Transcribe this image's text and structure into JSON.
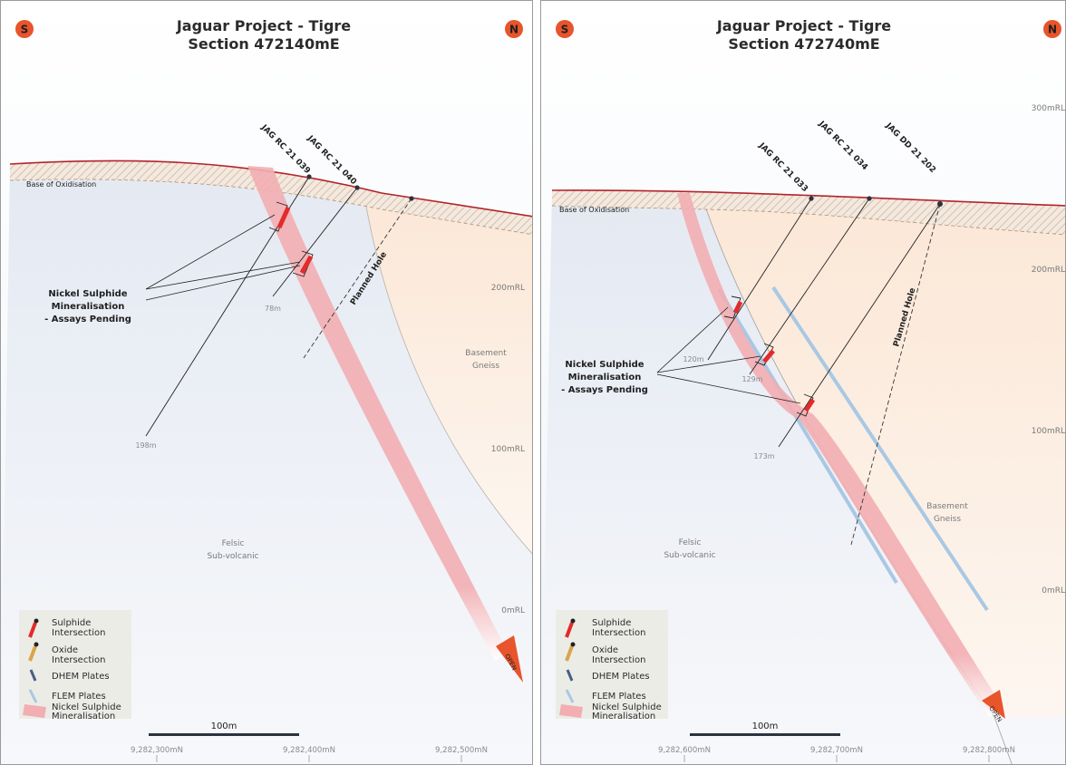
{
  "left": {
    "title": "Jaguar Project - Tigre",
    "subtitle": "Section 472140mE",
    "south": "S",
    "north": "N",
    "base_oxidisation": "Base of Oxidisation",
    "holes": [
      "JAG RC 21 039",
      "JAG RC 21 040"
    ],
    "planned_hole": "Planned Hole",
    "depths": [
      "198m",
      "78m"
    ],
    "mineralisation_label": [
      "Nickel Sulphide",
      "Mineralisation",
      "- Assays Pending"
    ],
    "basement": [
      "Basement",
      "Gneiss"
    ],
    "felsic": [
      "Felsic",
      "Sub-volcanic"
    ],
    "rl": [
      "200mRL",
      "100mRL",
      "0mRL"
    ],
    "northings": [
      "9,282,300mN",
      "9,282,400mN",
      "9,282,500mN"
    ],
    "scale": "100m",
    "open": "OPEN"
  },
  "right": {
    "title": "Jaguar Project - Tigre",
    "subtitle": "Section 472740mE",
    "south": "S",
    "north": "N",
    "base_oxidisation": "Base of Oxidisation",
    "holes": [
      "JAG RC 21 033",
      "JAG RC 21 034",
      "JAG DD 21 202"
    ],
    "planned_hole": "Planned Hole",
    "depths": [
      "120m",
      "129m",
      "173m"
    ],
    "mineralisation_label": [
      "Nickel Sulphide",
      "Mineralisation",
      "- Assays Pending"
    ],
    "basement": [
      "Basement",
      "Gneiss"
    ],
    "felsic": [
      "Felsic",
      "Sub-volcanic"
    ],
    "rl": [
      "300mRL",
      "200mRL",
      "100mRL",
      "0mRL"
    ],
    "northings": [
      "9,282,600mN",
      "9,282,700mN",
      "9,282,800mN"
    ],
    "scale": "100m",
    "open": "OPEN"
  },
  "legend": {
    "sulphide": [
      "Sulphide",
      "Intersection"
    ],
    "oxide": [
      "Oxide",
      "Intersection"
    ],
    "dhem": "DHEM Plates",
    "flem": "FLEM Plates",
    "mineral": [
      "Nickel Sulphide",
      "Mineralisation"
    ]
  },
  "colors": {
    "accent_orange": "#e8542b",
    "surface_red": "#b3242a",
    "mineral_pink": "#f2aeb2",
    "sulphide_red": "#e22b2b",
    "flem_blue": "#a8c8e4",
    "dhem_blue": "#4a5f82",
    "oxide_gold": "#d9a54a"
  }
}
